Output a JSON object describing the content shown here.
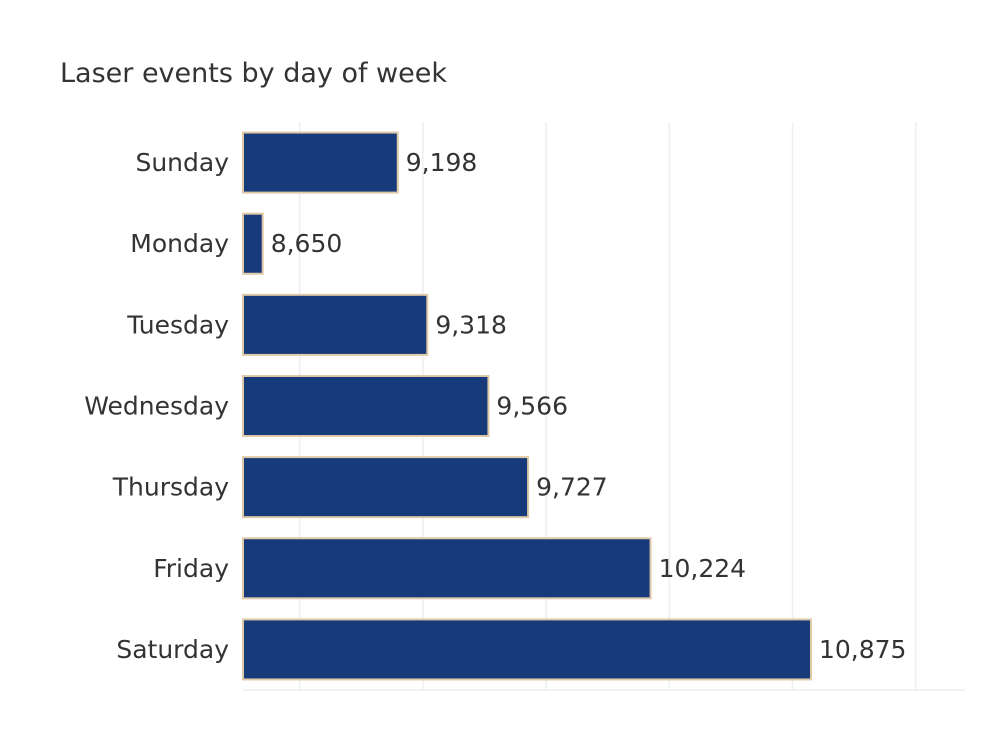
{
  "chart_data": {
    "type": "bar",
    "orientation": "horizontal",
    "title": "Laser events by day of week",
    "categories": [
      "Sunday",
      "Monday",
      "Tuesday",
      "Wednesday",
      "Thursday",
      "Friday",
      "Saturday"
    ],
    "values": [
      9198,
      8650,
      9318,
      9566,
      9727,
      10224,
      10875
    ],
    "value_labels": [
      "9,198",
      "8,650",
      "9,318",
      "9,566",
      "9,727",
      "10,224",
      "10,875"
    ],
    "xlim": [
      8570,
      11500
    ],
    "x_gridlines": [
      8800,
      9300,
      9800,
      10300,
      10800,
      11300
    ],
    "grid": true,
    "colors": {
      "bar": "#163a7a",
      "bar_outline": "#e0c9a8",
      "grid": "#eeeeee",
      "text": "#333333"
    }
  }
}
